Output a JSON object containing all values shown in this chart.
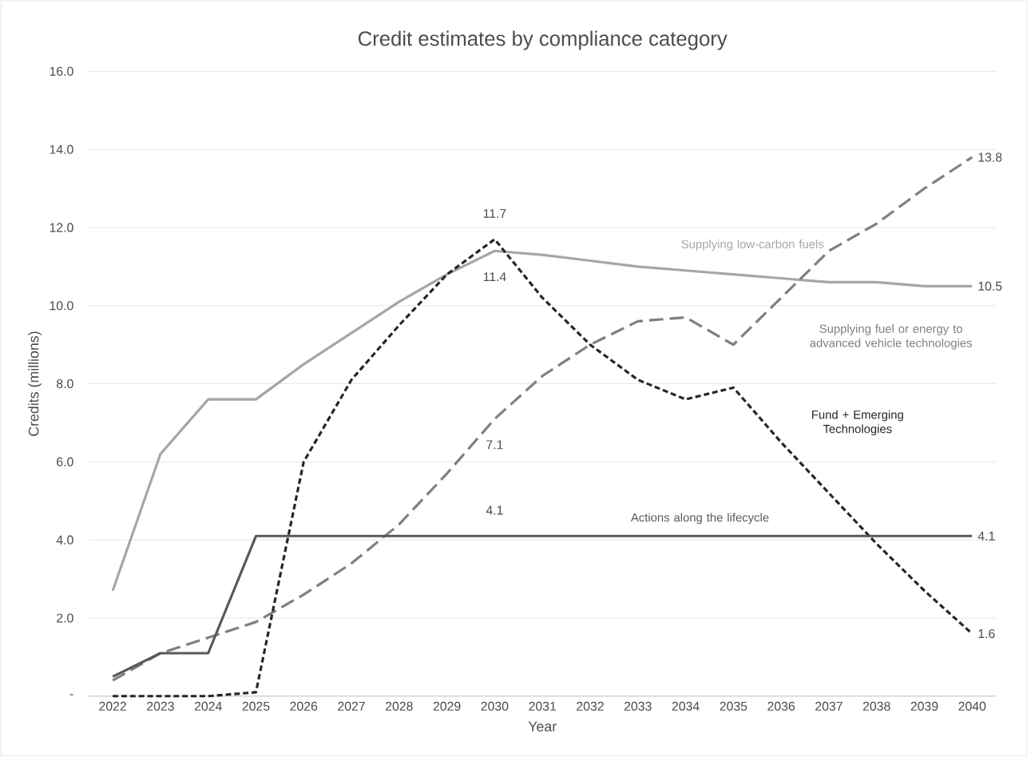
{
  "chart_data": {
    "type": "line",
    "title": "Credit estimates by compliance category",
    "xlabel": "Year",
    "ylabel": "Credits (millions)",
    "categories": [
      "2022",
      "2023",
      "2024",
      "2025",
      "2026",
      "2027",
      "2028",
      "2029",
      "2030",
      "2031",
      "2032",
      "2033",
      "2034",
      "2035",
      "2036",
      "2037",
      "2038",
      "2039",
      "2040"
    ],
    "ylim": [
      0,
      16
    ],
    "yticks": [
      {
        "value": 0,
        "label": "-"
      },
      {
        "value": 2,
        "label": "2.0"
      },
      {
        "value": 4,
        "label": "4.0"
      },
      {
        "value": 6,
        "label": "6.0"
      },
      {
        "value": 8,
        "label": "8.0"
      },
      {
        "value": 10,
        "label": "10.0"
      },
      {
        "value": 12,
        "label": "12.0"
      },
      {
        "value": 14,
        "label": "14.0"
      },
      {
        "value": 16,
        "label": "16.0"
      }
    ],
    "grid": "y",
    "legend": false,
    "marker": "none",
    "series": [
      {
        "name": "Supplying low-carbon fuels",
        "color": "#a6a6a6",
        "line_style": "solid",
        "values": [
          2.7,
          6.2,
          7.6,
          7.6,
          8.5,
          9.3,
          10.1,
          10.8,
          11.4,
          11.3,
          11.15,
          11.0,
          10.9,
          10.8,
          10.7,
          10.6,
          10.6,
          10.5,
          10.5
        ],
        "value_labels": [
          null,
          null,
          null,
          null,
          null,
          null,
          null,
          null,
          "11.4",
          null,
          null,
          null,
          null,
          null,
          null,
          null,
          null,
          null,
          "10.5"
        ]
      },
      {
        "name": "Supplying fuel or energy to advanced vehicle technologies",
        "color": "#7f7f7f",
        "line_style": "dashed",
        "values": [
          0.4,
          1.1,
          1.5,
          1.9,
          2.6,
          3.4,
          4.4,
          5.7,
          7.1,
          8.2,
          9.0,
          9.6,
          9.7,
          9.0,
          10.2,
          11.4,
          12.1,
          13.0,
          13.8
        ],
        "value_labels": [
          null,
          null,
          null,
          null,
          null,
          null,
          null,
          null,
          "7.1",
          null,
          null,
          null,
          null,
          null,
          null,
          null,
          null,
          null,
          "13.8"
        ]
      },
      {
        "name": "Fund + Emerging Technologies",
        "color": "#262626",
        "line_style": "dotted",
        "values": [
          0,
          0,
          0,
          0.1,
          6.0,
          8.1,
          9.5,
          10.8,
          11.7,
          10.2,
          9.0,
          8.1,
          7.6,
          7.9,
          6.5,
          5.2,
          3.9,
          2.7,
          1.6
        ],
        "value_labels": [
          null,
          null,
          null,
          null,
          null,
          null,
          null,
          null,
          "11.7",
          null,
          null,
          null,
          null,
          null,
          null,
          null,
          null,
          null,
          "1.6"
        ]
      },
      {
        "name": "Actions along the lifecycle",
        "color": "#595959",
        "line_style": "solid",
        "values": [
          0.5,
          1.1,
          1.1,
          4.1,
          4.1,
          4.1,
          4.1,
          4.1,
          4.1,
          4.1,
          4.1,
          4.1,
          4.1,
          4.1,
          4.1,
          4.1,
          4.1,
          4.1,
          4.1
        ],
        "value_labels": [
          null,
          null,
          null,
          null,
          null,
          null,
          null,
          null,
          "4.1",
          null,
          null,
          null,
          null,
          null,
          null,
          null,
          null,
          null,
          "4.1"
        ]
      }
    ]
  }
}
